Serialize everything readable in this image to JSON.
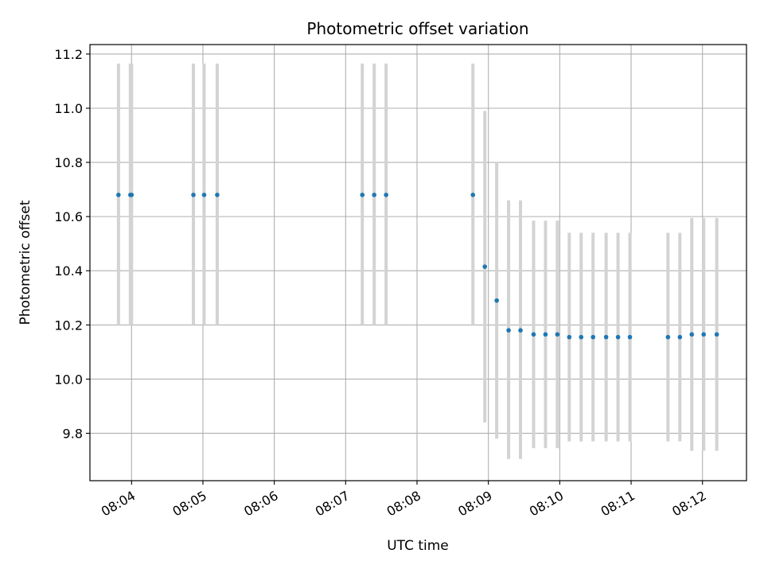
{
  "chart_data": {
    "type": "scatter",
    "title": "Photometric offset variation",
    "xlabel": "UTC time",
    "ylabel": "Photometric offset",
    "grid": true,
    "legend": "none",
    "x_ticks": [
      "08:04",
      "08:05",
      "08:06",
      "08:07",
      "08:08",
      "08:09",
      "08:10",
      "08:11",
      "08:12"
    ],
    "x_range": [
      "08:03:25",
      "08:12:37"
    ],
    "y_ticks": [
      "9.8",
      "10.0",
      "10.2",
      "10.4",
      "10.6",
      "10.8",
      "11.0",
      "11.2"
    ],
    "ylim": [
      9.625,
      11.235
    ],
    "colors": {
      "points": "#1f77b4",
      "errorbars": "#d3d3d3",
      "grid": "#b0b0b0"
    },
    "series": [
      {
        "points": [
          {
            "x": "08:03:49",
            "y": 10.68,
            "ylow": 10.2,
            "yhigh": 11.165
          },
          {
            "x": "08:03:59",
            "y": 10.68,
            "ylow": 10.2,
            "yhigh": 11.165
          },
          {
            "x": "08:04:00",
            "y": 10.68,
            "ylow": 10.2,
            "yhigh": 11.165
          },
          {
            "x": "08:04:52",
            "y": 10.68,
            "ylow": 10.2,
            "yhigh": 11.165
          },
          {
            "x": "08:05:01",
            "y": 10.68,
            "ylow": 10.2,
            "yhigh": 11.165
          },
          {
            "x": "08:05:12",
            "y": 10.68,
            "ylow": 10.2,
            "yhigh": 11.165
          },
          {
            "x": "08:07:14",
            "y": 10.68,
            "ylow": 10.2,
            "yhigh": 11.165
          },
          {
            "x": "08:07:24",
            "y": 10.68,
            "ylow": 10.2,
            "yhigh": 11.165
          },
          {
            "x": "08:07:34",
            "y": 10.68,
            "ylow": 10.2,
            "yhigh": 11.165
          },
          {
            "x": "08:08:47",
            "y": 10.68,
            "ylow": 10.2,
            "yhigh": 11.165
          },
          {
            "x": "08:08:57",
            "y": 10.415,
            "ylow": 9.84,
            "yhigh": 10.99
          },
          {
            "x": "08:09:07",
            "y": 10.29,
            "ylow": 9.78,
            "yhigh": 10.8
          },
          {
            "x": "08:09:17",
            "y": 10.18,
            "ylow": 9.705,
            "yhigh": 10.66
          },
          {
            "x": "08:09:27",
            "y": 10.18,
            "ylow": 9.705,
            "yhigh": 10.66
          },
          {
            "x": "08:09:38",
            "y": 10.165,
            "ylow": 9.745,
            "yhigh": 10.585
          },
          {
            "x": "08:09:48",
            "y": 10.165,
            "ylow": 9.745,
            "yhigh": 10.585
          },
          {
            "x": "08:09:58",
            "y": 10.165,
            "ylow": 9.745,
            "yhigh": 10.585
          },
          {
            "x": "08:10:08",
            "y": 10.155,
            "ylow": 9.77,
            "yhigh": 10.54
          },
          {
            "x": "08:10:18",
            "y": 10.155,
            "ylow": 9.77,
            "yhigh": 10.54
          },
          {
            "x": "08:10:28",
            "y": 10.155,
            "ylow": 9.77,
            "yhigh": 10.54
          },
          {
            "x": "08:10:39",
            "y": 10.155,
            "ylow": 9.77,
            "yhigh": 10.54
          },
          {
            "x": "08:10:49",
            "y": 10.155,
            "ylow": 9.77,
            "yhigh": 10.54
          },
          {
            "x": "08:10:59",
            "y": 10.155,
            "ylow": 9.77,
            "yhigh": 10.54
          },
          {
            "x": "08:11:31",
            "y": 10.155,
            "ylow": 9.77,
            "yhigh": 10.54
          },
          {
            "x": "08:11:41",
            "y": 10.155,
            "ylow": 9.77,
            "yhigh": 10.54
          },
          {
            "x": "08:11:51",
            "y": 10.165,
            "ylow": 9.735,
            "yhigh": 10.595
          },
          {
            "x": "08:12:01",
            "y": 10.165,
            "ylow": 9.735,
            "yhigh": 10.595
          },
          {
            "x": "08:12:12",
            "y": 10.165,
            "ylow": 9.735,
            "yhigh": 10.595
          }
        ]
      }
    ]
  }
}
